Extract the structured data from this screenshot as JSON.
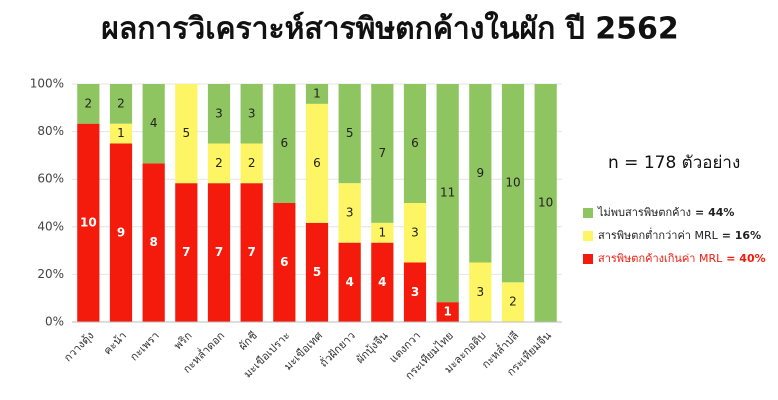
{
  "chart_data": {
    "type": "stacked_percent_bar",
    "title": "ผลการวิเคราะห์สารพิษตกค้างในผัก ปี 2562",
    "annotation": "n = 178 ตัวอย่าง",
    "categories": [
      "กวางตุ้ง",
      "คะน้า",
      "กะเพรา",
      "พริก",
      "กะหล่ำดอก",
      "ผักชี",
      "มะเขือเปราะ",
      "มะเขือเทศ",
      "ถั่วฝักยาว",
      "ผักบุ้งจีน",
      "แตงกวา",
      "กระเทียมไทย",
      "มะละกอดิบ",
      "กะหล่ำปลี",
      "กระเทียมจีน"
    ],
    "series": [
      {
        "name": "สารพิษตกค้างเกินค่า MRL",
        "share": "= 40%",
        "color": "#f41a0c",
        "label_color": "#ffffff",
        "values": [
          10,
          9,
          8,
          7,
          7,
          7,
          6,
          5,
          4,
          4,
          3,
          1,
          null,
          null,
          null
        ]
      },
      {
        "name": "สารพิษตกต่ำกว่าค่า MRL",
        "share": "= 16%",
        "color": "#fdf563",
        "label_color": "#222222",
        "values": [
          null,
          1,
          null,
          5,
          2,
          2,
          null,
          6,
          3,
          1,
          3,
          null,
          3,
          2,
          null
        ]
      },
      {
        "name": "ไม่พบสารพิษตกค้าง",
        "share": "= 44%",
        "color": "#8fc560",
        "label_color": "#222222",
        "values": [
          2,
          2,
          4,
          null,
          3,
          3,
          6,
          1,
          5,
          7,
          6,
          11,
          9,
          10,
          10
        ]
      }
    ],
    "ylim": [
      0,
      100
    ],
    "yticks": [
      {
        "value": 0,
        "label": "0%"
      },
      {
        "value": 20,
        "label": "20%"
      },
      {
        "value": 40,
        "label": "40%"
      },
      {
        "value": 60,
        "label": "60%"
      },
      {
        "value": 80,
        "label": "80%"
      },
      {
        "value": 100,
        "label": "100%"
      }
    ]
  }
}
